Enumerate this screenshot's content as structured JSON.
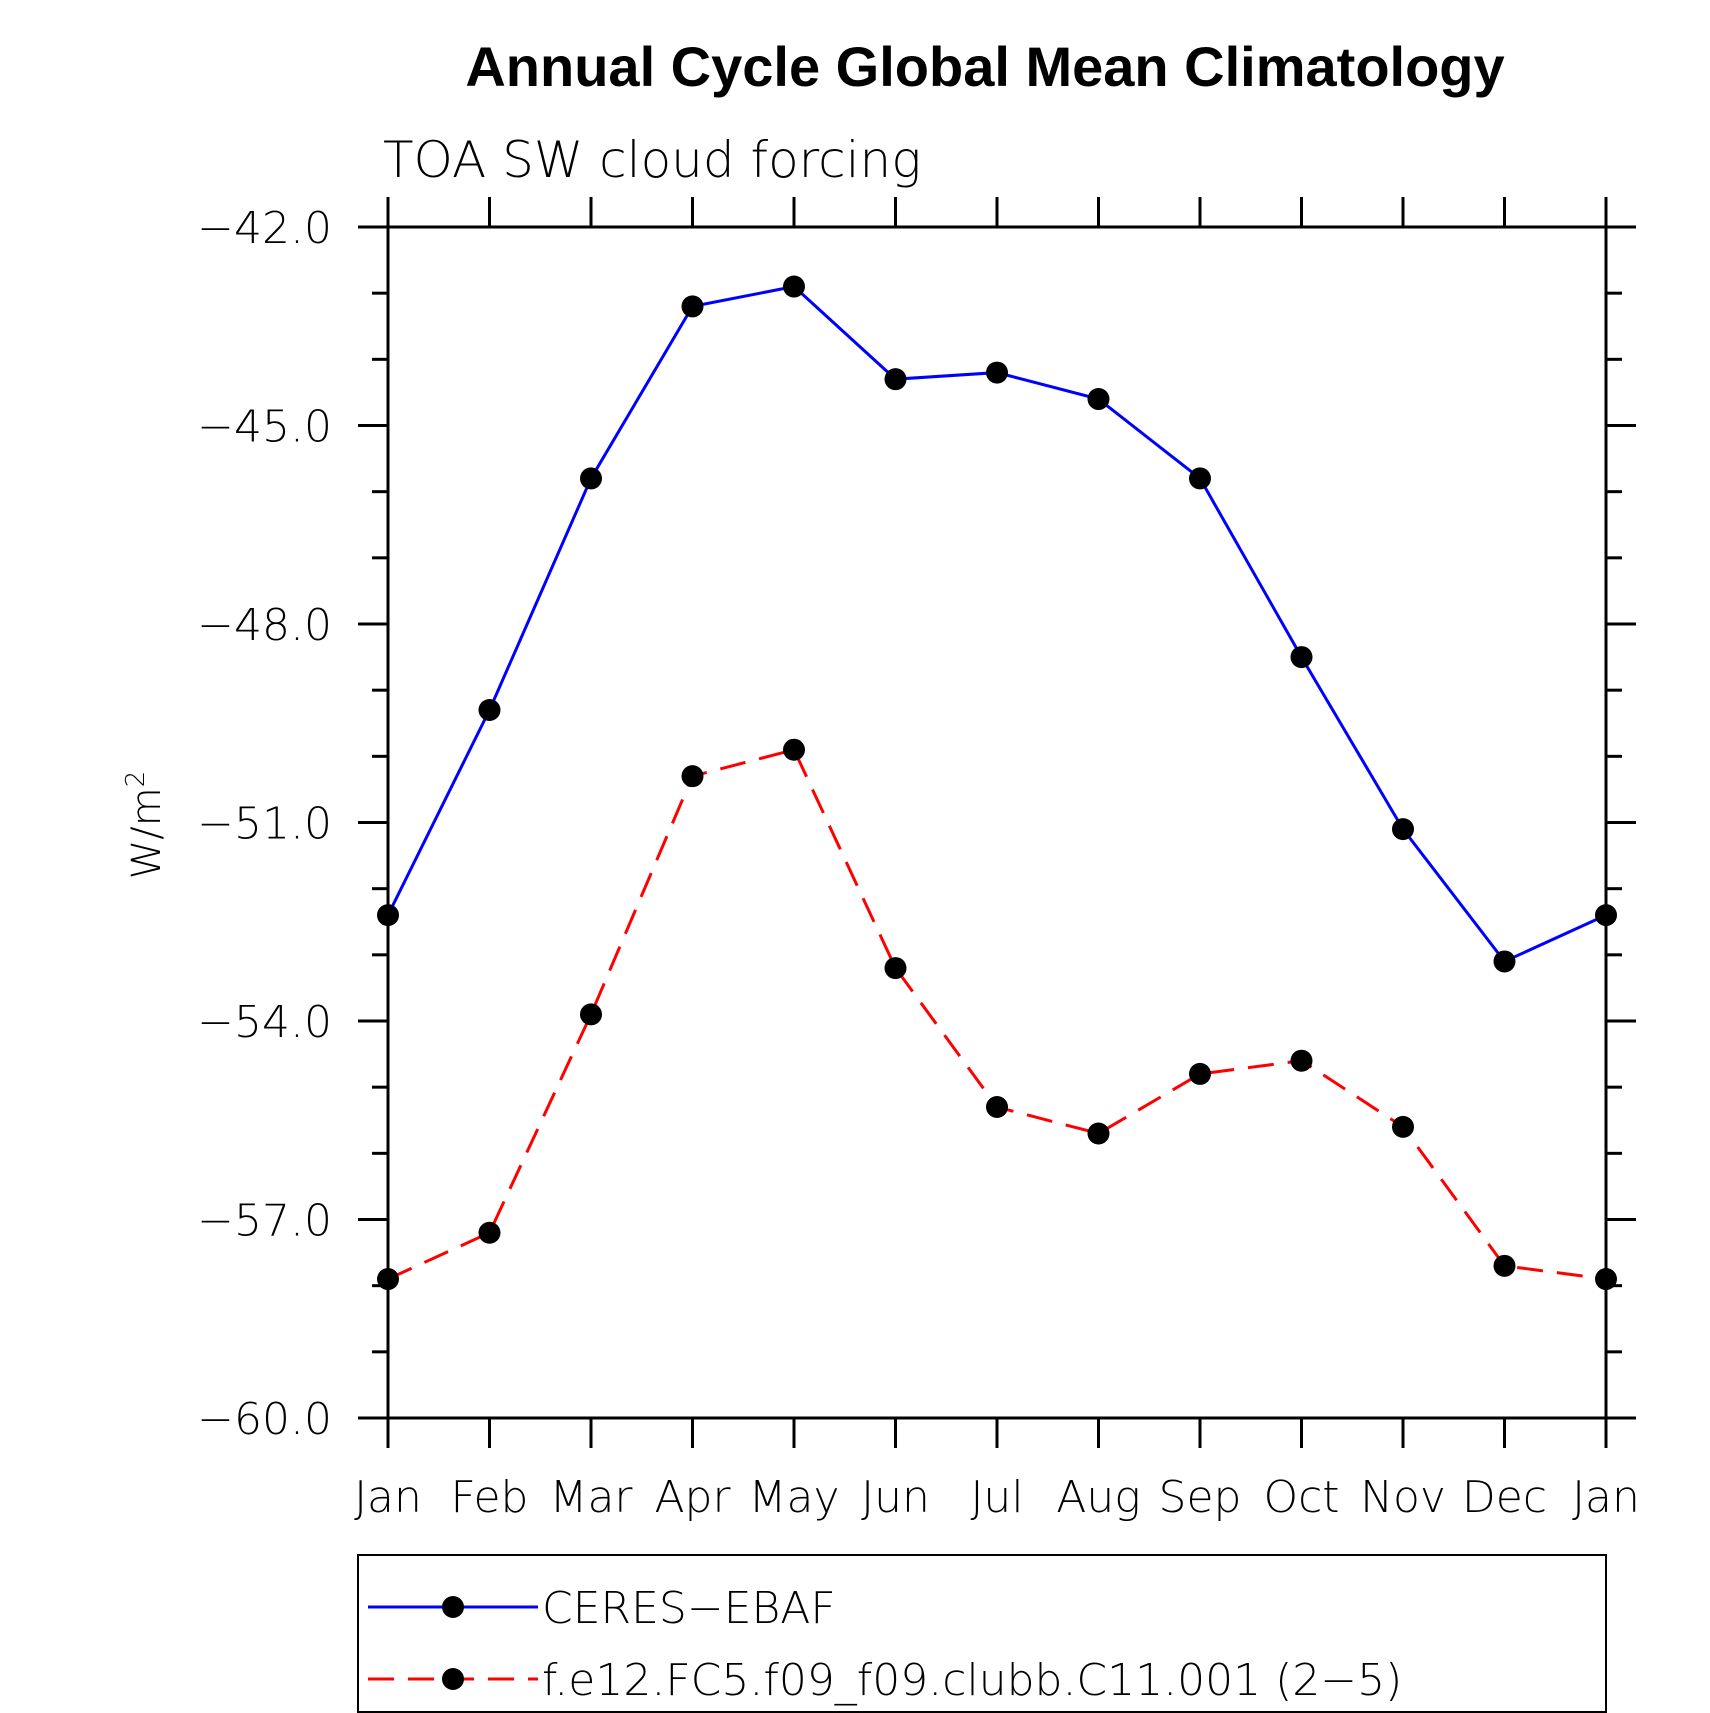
{
  "chart_data": {
    "type": "line",
    "title": "Annual Cycle Global Mean Climatology",
    "subtitle": "TOA SW cloud forcing",
    "ylabel": "W/m",
    "ylabel_superscript": "2",
    "xlabel": "",
    "categories": [
      "Jan",
      "Feb",
      "Mar",
      "Apr",
      "May",
      "Jun",
      "Jul",
      "Aug",
      "Sep",
      "Oct",
      "Nov",
      "Dec",
      "Jan"
    ],
    "ylim": [
      -60.0,
      -42.0
    ],
    "yticks": [
      -42.0,
      -45.0,
      -48.0,
      -51.0,
      -54.0,
      -57.0,
      -60.0
    ],
    "ytick_labels": [
      "−42.0",
      "−45.0",
      "−48.0",
      "−51.0",
      "−54.0",
      "−57.0",
      "−60.0"
    ],
    "y_minor_step": 1.0,
    "grid": false,
    "legend_position": "bottom",
    "series": [
      {
        "name": "CERES−EBAF",
        "color": "#0000ff",
        "line_style": "solid",
        "marker": "filled-circle",
        "values": [
          -52.4,
          -49.3,
          -45.8,
          -43.2,
          -42.9,
          -44.3,
          -44.2,
          -44.6,
          -45.8,
          -48.5,
          -51.1,
          -53.1,
          -52.4
        ]
      },
      {
        "name": "f.e12.FC5.f09_f09.clubb.C11.001 (2−5)",
        "color": "#ff0000",
        "line_style": "dashed",
        "marker": "filled-circle",
        "values": [
          -57.9,
          -57.2,
          -53.9,
          -50.3,
          -49.9,
          -53.2,
          -55.3,
          -55.7,
          -54.8,
          -54.6,
          -55.6,
          -57.7,
          -57.9
        ]
      }
    ]
  }
}
